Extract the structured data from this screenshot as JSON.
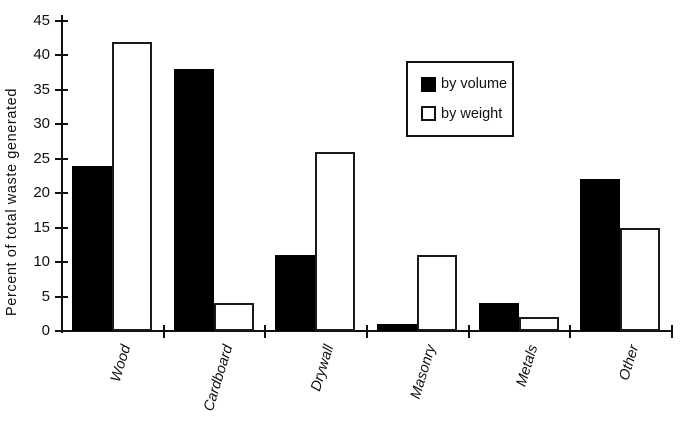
{
  "chart_data": {
    "type": "bar",
    "title": "",
    "categories": [
      "Wood",
      "Cardboard",
      "Drywall",
      "Masonry",
      "Metals",
      "Other"
    ],
    "series": [
      {
        "name": "by volume",
        "values": [
          24,
          38,
          11,
          1,
          4,
          22
        ],
        "fill": "#000000",
        "swatch": "filled"
      },
      {
        "name": "by weight",
        "values": [
          42,
          4,
          26,
          11,
          2,
          15
        ],
        "fill": "#ffffff",
        "swatch": "outline"
      }
    ],
    "xlabel": "",
    "ylabel": "Percent of total waste generated",
    "ylim": [
      0,
      45
    ],
    "yticks": [
      0,
      5,
      10,
      15,
      20,
      25,
      30,
      35,
      40,
      45
    ],
    "grid": false,
    "legend_position": "upper-right",
    "colors": {
      "ink": "#111111",
      "background": "#ffffff"
    }
  }
}
